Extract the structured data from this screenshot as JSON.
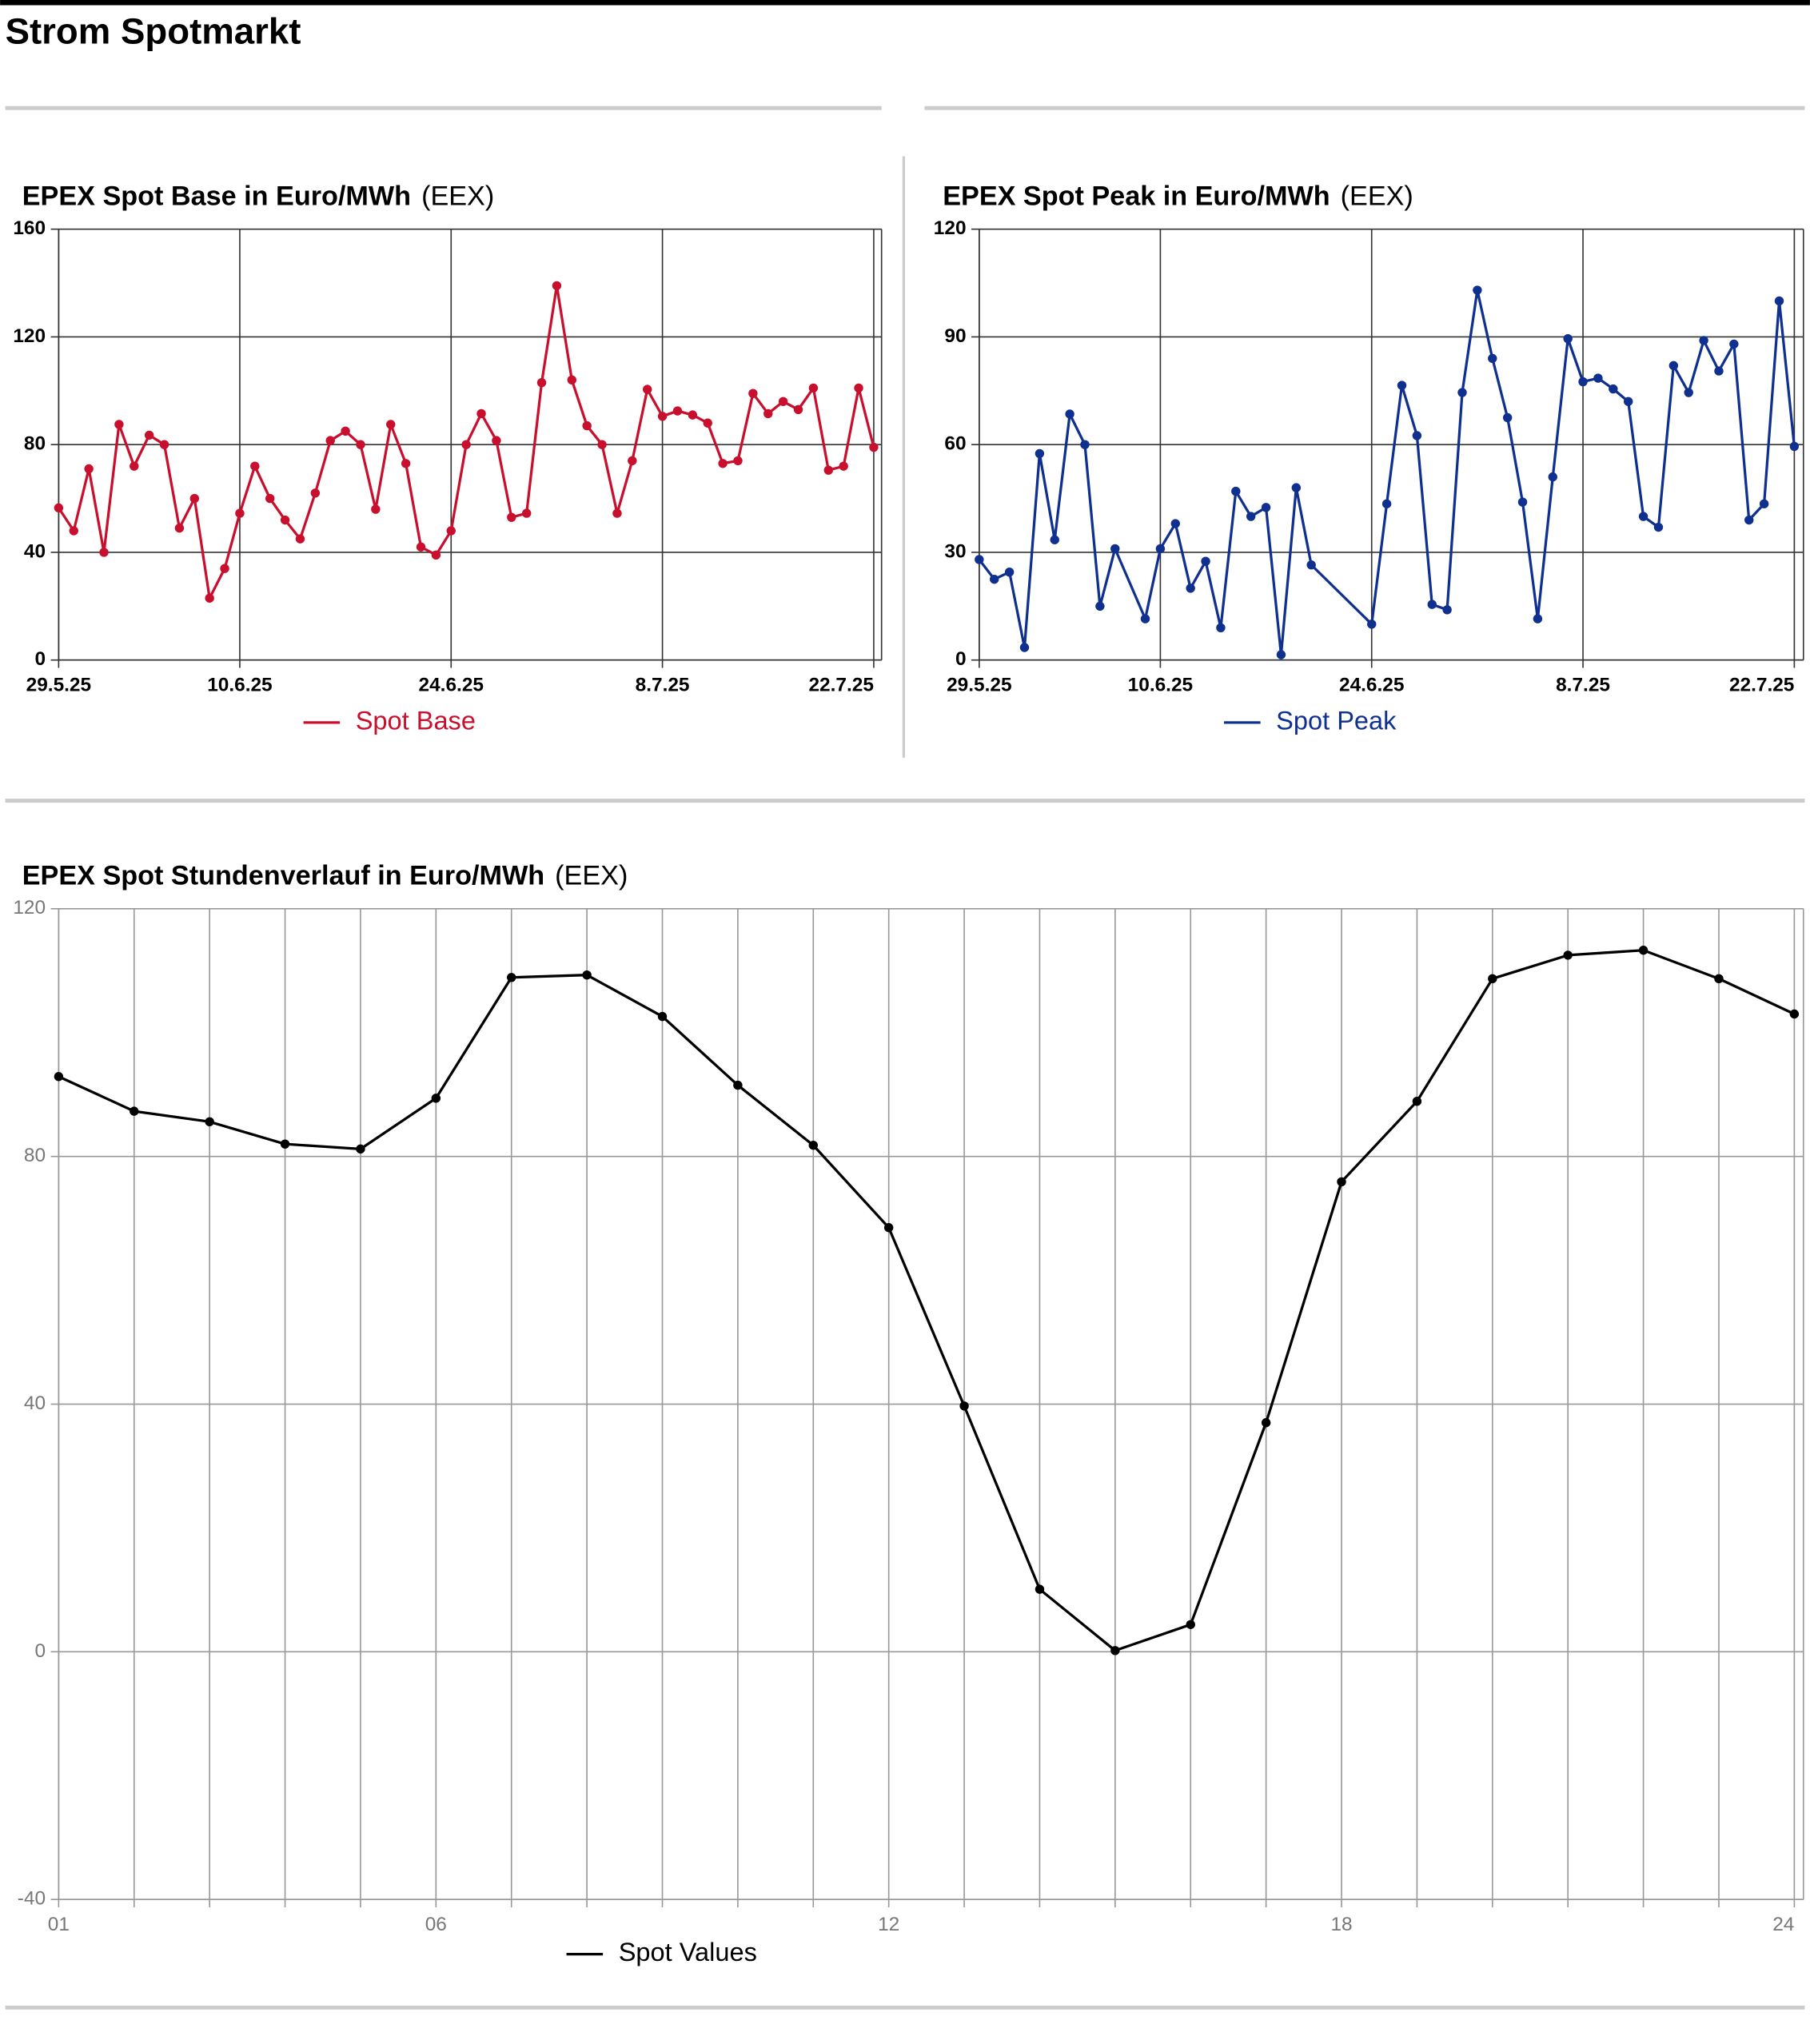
{
  "page_title": "Strom Spotmarkt",
  "chart_data": [
    {
      "type": "line",
      "title": "EPEX Spot Base in Euro/MWh",
      "source": "(EEX)",
      "x": [
        "29.5.25",
        "30.5.25",
        "31.5.25",
        "1.6.25",
        "2.6.25",
        "3.6.25",
        "4.6.25",
        "5.6.25",
        "6.6.25",
        "7.6.25",
        "8.6.25",
        "9.6.25",
        "10.6.25",
        "11.6.25",
        "12.6.25",
        "13.6.25",
        "14.6.25",
        "15.6.25",
        "16.6.25",
        "17.6.25",
        "18.6.25",
        "19.6.25",
        "20.6.25",
        "21.6.25",
        "22.6.25",
        "23.6.25",
        "24.6.25",
        "25.6.25",
        "26.6.25",
        "27.6.25",
        "28.6.25",
        "29.6.25",
        "30.6.25",
        "1.7.25",
        "2.7.25",
        "3.7.25",
        "4.7.25",
        "5.7.25",
        "6.7.25",
        "7.7.25",
        "8.7.25",
        "9.7.25",
        "10.7.25",
        "11.7.25",
        "12.7.25",
        "13.7.25",
        "14.7.25",
        "15.7.25",
        "16.7.25",
        "17.7.25",
        "18.7.25",
        "19.7.25",
        "20.7.25",
        "21.7.25",
        "22.7.25"
      ],
      "xlim": [
        "29.5.25",
        "22.7.25"
      ],
      "xticks": [
        "29.5.25",
        "10.6.25",
        "24.6.25",
        "8.7.25",
        "22.7.25"
      ],
      "ylim": [
        0,
        160
      ],
      "yticks": [
        0,
        40,
        80,
        120,
        160
      ],
      "grid": true,
      "series": [
        {
          "name": "Spot Base",
          "color": "#c8102e",
          "values": [
            56.5,
            48,
            71,
            40,
            87.5,
            72,
            83.5,
            80,
            49,
            60,
            23,
            34,
            54.5,
            72,
            60,
            52,
            45,
            62,
            81.5,
            85,
            80,
            56,
            87.5,
            73,
            42,
            39,
            48,
            80,
            91.5,
            81.5,
            53,
            54.5,
            103,
            139,
            104,
            87,
            80,
            54.5,
            74,
            100.5,
            90.5,
            92.5,
            91,
            88,
            73,
            74,
            99,
            91.5,
            96,
            93,
            101,
            70.5,
            72,
            101,
            79
          ]
        }
      ]
    },
    {
      "type": "line",
      "title": "EPEX Spot Peak in Euro/MWh",
      "source": "(EEX)",
      "x": [
        "29.5.25",
        "30.5.25",
        "31.5.25",
        "1.6.25",
        "2.6.25",
        "3.6.25",
        "4.6.25",
        "5.6.25",
        "6.6.25",
        "7.6.25",
        "9.6.25",
        "10.6.25",
        "11.6.25",
        "12.6.25",
        "13.6.25",
        "14.6.25",
        "15.6.25",
        "16.6.25",
        "17.6.25",
        "18.6.25",
        "19.6.25",
        "20.6.25",
        "24.6.25",
        "25.6.25",
        "26.6.25",
        "27.6.25",
        "28.6.25",
        "29.6.25",
        "30.6.25",
        "1.7.25",
        "2.7.25",
        "3.7.25",
        "4.7.25",
        "5.7.25",
        "6.7.25",
        "7.7.25",
        "8.7.25",
        "9.7.25",
        "10.7.25",
        "11.7.25",
        "12.7.25",
        "13.7.25",
        "14.7.25",
        "15.7.25",
        "16.7.25",
        "17.7.25",
        "18.7.25",
        "19.7.25",
        "20.7.25",
        "21.7.25",
        "22.7.25"
      ],
      "xlim": [
        "29.5.25",
        "22.7.25"
      ],
      "xticks": [
        "29.5.25",
        "10.6.25",
        "24.6.25",
        "8.7.25",
        "22.7.25"
      ],
      "ylim": [
        0,
        120
      ],
      "yticks": [
        0,
        30,
        60,
        90,
        120
      ],
      "grid": true,
      "series": [
        {
          "name": "Spot Peak",
          "color": "#103090",
          "values": [
            28,
            22.5,
            24.5,
            3.5,
            57.5,
            33.5,
            68.5,
            60,
            15,
            31,
            11.5,
            31,
            38,
            20,
            27.5,
            9,
            47,
            40,
            42.5,
            1.5,
            48,
            26.5,
            10,
            43.5,
            76.5,
            62.5,
            15.5,
            14,
            74.5,
            103,
            84,
            67.5,
            44,
            11.5,
            51,
            89.5,
            77.5,
            78.5,
            75.5,
            72,
            40,
            37,
            82,
            74.5,
            89,
            80.5,
            88,
            39,
            43.5,
            100,
            59.5
          ]
        }
      ]
    },
    {
      "type": "line",
      "title": "EPEX Spot Stundenverlauf in Euro/MWh",
      "source": "(EEX)",
      "x": [
        1,
        2,
        3,
        4,
        5,
        6,
        7,
        8,
        9,
        10,
        11,
        12,
        13,
        14,
        15,
        16,
        17,
        18,
        19,
        20,
        21,
        22,
        23,
        24
      ],
      "xlim": [
        1,
        24
      ],
      "xticks": [
        {
          "value": 1,
          "label": "01"
        },
        {
          "value": 6,
          "label": "06"
        },
        12,
        18,
        24
      ],
      "ylim": [
        -40,
        120
      ],
      "yticks": [
        -40,
        0,
        40,
        80,
        120
      ],
      "grid": true,
      "series": [
        {
          "name": "Spot Values",
          "color": "#000000",
          "values": [
            92.9,
            87.3,
            85.6,
            82,
            81.2,
            89.4,
            108.9,
            109.3,
            102.6,
            91.5,
            81.8,
            68.5,
            39.7,
            10.1,
            0.2,
            4.4,
            37,
            75.9,
            88.9,
            108.7,
            112.5,
            113.3,
            108.7,
            103
          ]
        }
      ]
    }
  ]
}
